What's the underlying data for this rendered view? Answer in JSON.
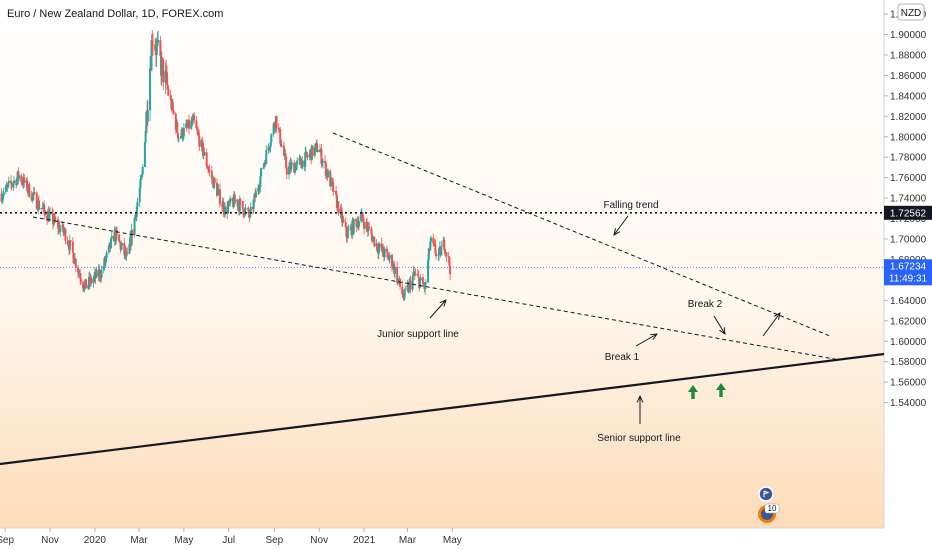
{
  "header": {
    "title": "Euro / New Zealand Dollar, 1D, FOREX.com",
    "currency": "NZD"
  },
  "colors": {
    "bull": "#26a69a",
    "bear": "#ef5350",
    "current_price_badge": "#2962ff",
    "level_badge": "#131722",
    "arrow_green": "#1b8a3a"
  },
  "icons": [
    "up-arrow-icon",
    "flag-icon",
    "news-icon"
  ],
  "chart_data": {
    "type": "candlestick",
    "x_ticks": [
      "Sep",
      "Nov",
      "2020",
      "Mar",
      "May",
      "Jul",
      "Sep",
      "Nov",
      "2021",
      "Mar",
      "May"
    ],
    "y_ticks": [
      "1.92000",
      "1.90000",
      "1.88000",
      "1.86000",
      "1.84000",
      "1.82000",
      "1.80000",
      "1.78000",
      "1.76000",
      "1.74000",
      "1.72000",
      "1.70000",
      "1.68000",
      "1.66000",
      "1.64000",
      "1.62000",
      "1.60000",
      "1.58000",
      "1.56000",
      "1.54000"
    ],
    "ylim": [
      1.533,
      1.927
    ],
    "y_scale": "linear",
    "grid": false,
    "horizontal_level": {
      "value": 1.72562,
      "label": "1.72562",
      "style": "dotted"
    },
    "current_price": {
      "value": 1.67234,
      "label": "1.67234",
      "countdown": "11:49:31"
    },
    "annotations": [
      {
        "text": "Falling trend"
      },
      {
        "text": "Junior support line"
      },
      {
        "text": "Break 1"
      },
      {
        "text": "Break 2"
      },
      {
        "text": "Senior support line"
      }
    ],
    "news_badge": "10",
    "anchor_points": [
      {
        "date": "2019-08-28",
        "close": 1.744
      },
      {
        "date": "2019-09-20",
        "close": 1.762
      },
      {
        "date": "2019-10-18",
        "close": 1.732
      },
      {
        "date": "2019-11-22",
        "close": 1.705
      },
      {
        "date": "2019-12-18",
        "close": 1.653
      },
      {
        "date": "2020-01-10",
        "close": 1.668
      },
      {
        "date": "2020-01-28",
        "close": 1.705
      },
      {
        "date": "2020-02-14",
        "close": 1.68
      },
      {
        "date": "2020-03-05",
        "close": 1.76
      },
      {
        "date": "2020-03-19",
        "close": 1.9
      },
      {
        "date": "2020-04-06",
        "close": 1.855
      },
      {
        "date": "2020-04-24",
        "close": 1.8
      },
      {
        "date": "2020-05-14",
        "close": 1.815
      },
      {
        "date": "2020-06-05",
        "close": 1.765
      },
      {
        "date": "2020-06-26",
        "close": 1.728
      },
      {
        "date": "2020-07-10",
        "close": 1.738
      },
      {
        "date": "2020-07-30",
        "close": 1.722
      },
      {
        "date": "2020-08-20",
        "close": 1.78
      },
      {
        "date": "2020-09-03",
        "close": 1.818
      },
      {
        "date": "2020-09-18",
        "close": 1.768
      },
      {
        "date": "2020-10-08",
        "close": 1.775
      },
      {
        "date": "2020-10-30",
        "close": 1.79
      },
      {
        "date": "2020-11-20",
        "close": 1.748
      },
      {
        "date": "2020-12-08",
        "close": 1.704
      },
      {
        "date": "2020-12-28",
        "close": 1.722
      },
      {
        "date": "2021-01-20",
        "close": 1.692
      },
      {
        "date": "2021-02-08",
        "close": 1.678
      },
      {
        "date": "2021-02-24",
        "close": 1.642
      },
      {
        "date": "2021-03-10",
        "close": 1.665
      },
      {
        "date": "2021-03-25",
        "close": 1.652
      },
      {
        "date": "2021-04-01",
        "close": 1.697
      },
      {
        "date": "2021-04-12",
        "close": 1.683
      },
      {
        "date": "2021-04-20",
        "close": 1.696
      },
      {
        "date": "2021-04-28",
        "close": 1.672
      }
    ]
  }
}
